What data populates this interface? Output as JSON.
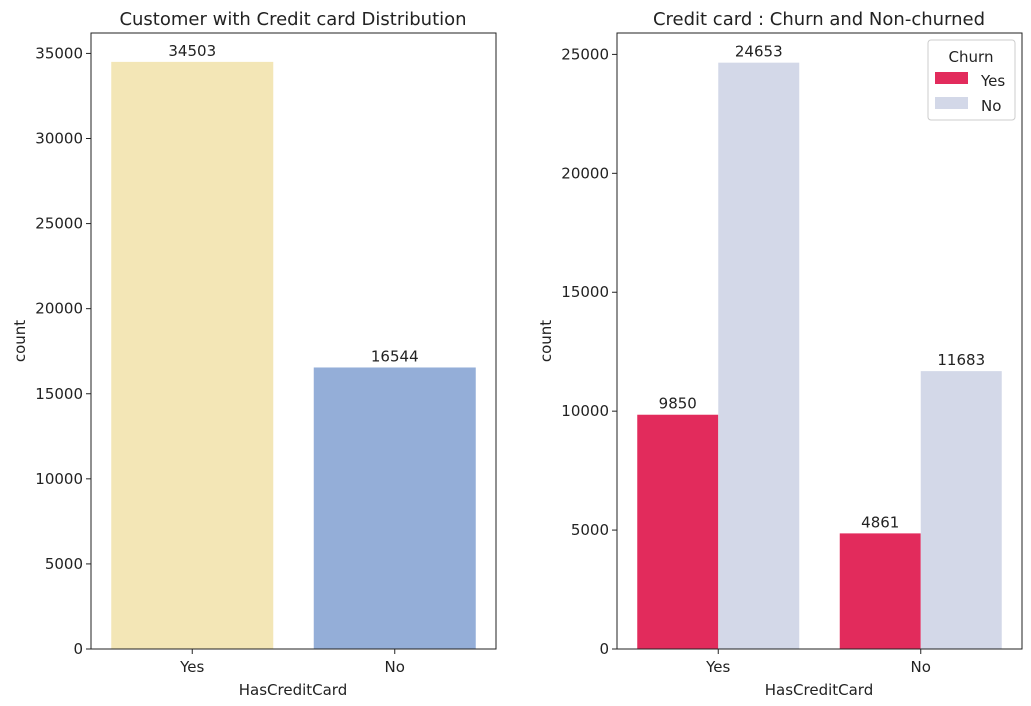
{
  "chart_data": [
    {
      "type": "bar",
      "title": "Customer with Credit card Distribution",
      "xlabel": "HasCreditCard",
      "ylabel": "count",
      "categories": [
        "Yes",
        "No"
      ],
      "values": [
        34503,
        16544
      ],
      "data_labels": [
        "34503",
        "16544"
      ],
      "bar_colors": [
        "#f3e6b6",
        "#94aed8"
      ],
      "ylim": [
        0,
        36200
      ],
      "yticks": [
        0,
        5000,
        10000,
        15000,
        20000,
        25000,
        30000,
        35000
      ],
      "grid": false
    },
    {
      "type": "bar",
      "title": "Credit card : Churn and Non-churned",
      "xlabel": "HasCreditCard",
      "ylabel": "count",
      "categories": [
        "Yes",
        "No"
      ],
      "series": [
        {
          "name": "Yes",
          "values": [
            9850,
            4861
          ],
          "data_labels": [
            "9850",
            "4861"
          ],
          "color": "#e22b5c"
        },
        {
          "name": "No",
          "values": [
            24653,
            11683
          ],
          "data_labels": [
            "24653",
            "11683"
          ],
          "color": "#d3d8e8"
        }
      ],
      "ylim": [
        0,
        25900
      ],
      "yticks": [
        0,
        5000,
        10000,
        15000,
        20000,
        25000
      ],
      "grid": false,
      "legend": {
        "title": "Churn",
        "position": "top-right"
      }
    }
  ]
}
